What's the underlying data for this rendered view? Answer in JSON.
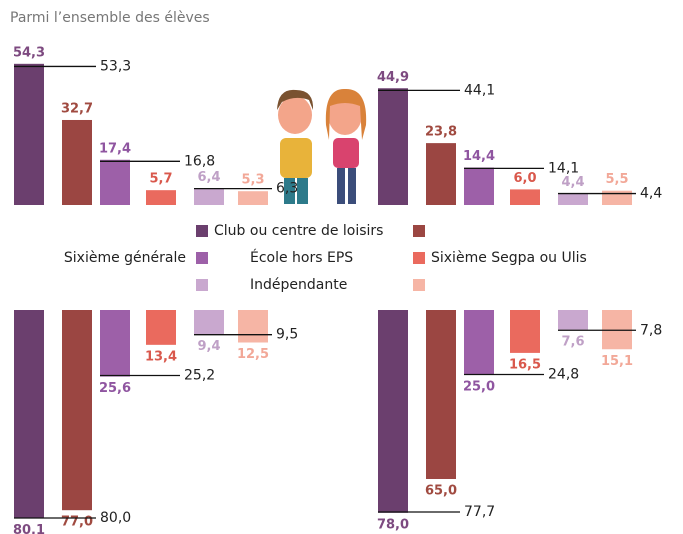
{
  "title": "Parmi l’ensemble des élèves",
  "chart_data": {
    "type": "bar",
    "categories": [
      "Club ou centre de loisirs",
      "École hors EPS",
      "Indépendante"
    ],
    "series": [
      {
        "name": "Sixième générale",
        "colors": [
          "#6b3f6e",
          "#9d60a8",
          "#c9a8cf"
        ]
      },
      {
        "name": "Sixième Segpa ou Ulis",
        "colors": [
          "#9b4642",
          "#ea6a5e",
          "#f6b5a5"
        ]
      }
    ],
    "panels": [
      {
        "direction": "up",
        "values": [
          [
            54.3,
            32.7
          ],
          [
            17.4,
            5.7
          ],
          [
            6.4,
            5.3
          ]
        ],
        "value_labels": [
          [
            "54,3",
            "32,7"
          ],
          [
            "17,4",
            "5,7"
          ],
          [
            "6,4",
            "5,3"
          ]
        ],
        "totals": [
          53.3,
          16.8,
          6.3
        ],
        "total_labels": [
          "53,3",
          "16,8",
          "6,3"
        ]
      },
      {
        "direction": "up",
        "values": [
          [
            44.9,
            23.8
          ],
          [
            14.4,
            6.0
          ],
          [
            4.4,
            5.5
          ]
        ],
        "value_labels": [
          [
            "44,9",
            "23,8"
          ],
          [
            "14,4",
            "6,0"
          ],
          [
            "4,4",
            "5,5"
          ]
        ],
        "totals": [
          44.1,
          14.1,
          4.4
        ],
        "total_labels": [
          "44,1",
          "14,1",
          "4,4"
        ]
      },
      {
        "direction": "down",
        "values": [
          [
            80.1,
            77.0
          ],
          [
            25.6,
            13.4
          ],
          [
            9.4,
            12.5
          ]
        ],
        "value_labels": [
          [
            "80,1",
            "77,0"
          ],
          [
            "25,6",
            "13,4"
          ],
          [
            "9,4",
            "12,5"
          ]
        ],
        "totals": [
          80.0,
          25.2,
          9.5
        ],
        "total_labels": [
          "80,0",
          "25,2",
          "9,5"
        ]
      },
      {
        "direction": "down",
        "values": [
          [
            78.0,
            65.0
          ],
          [
            25.0,
            16.5
          ],
          [
            7.6,
            15.1
          ]
        ],
        "value_labels": [
          [
            "78,0",
            "65,0"
          ],
          [
            "25,0",
            "16,5"
          ],
          [
            "7,6",
            "15,1"
          ]
        ],
        "totals": [
          77.7,
          24.8,
          7.8
        ],
        "total_labels": [
          "77,7",
          "24,8",
          "7,8"
        ]
      }
    ]
  }
}
